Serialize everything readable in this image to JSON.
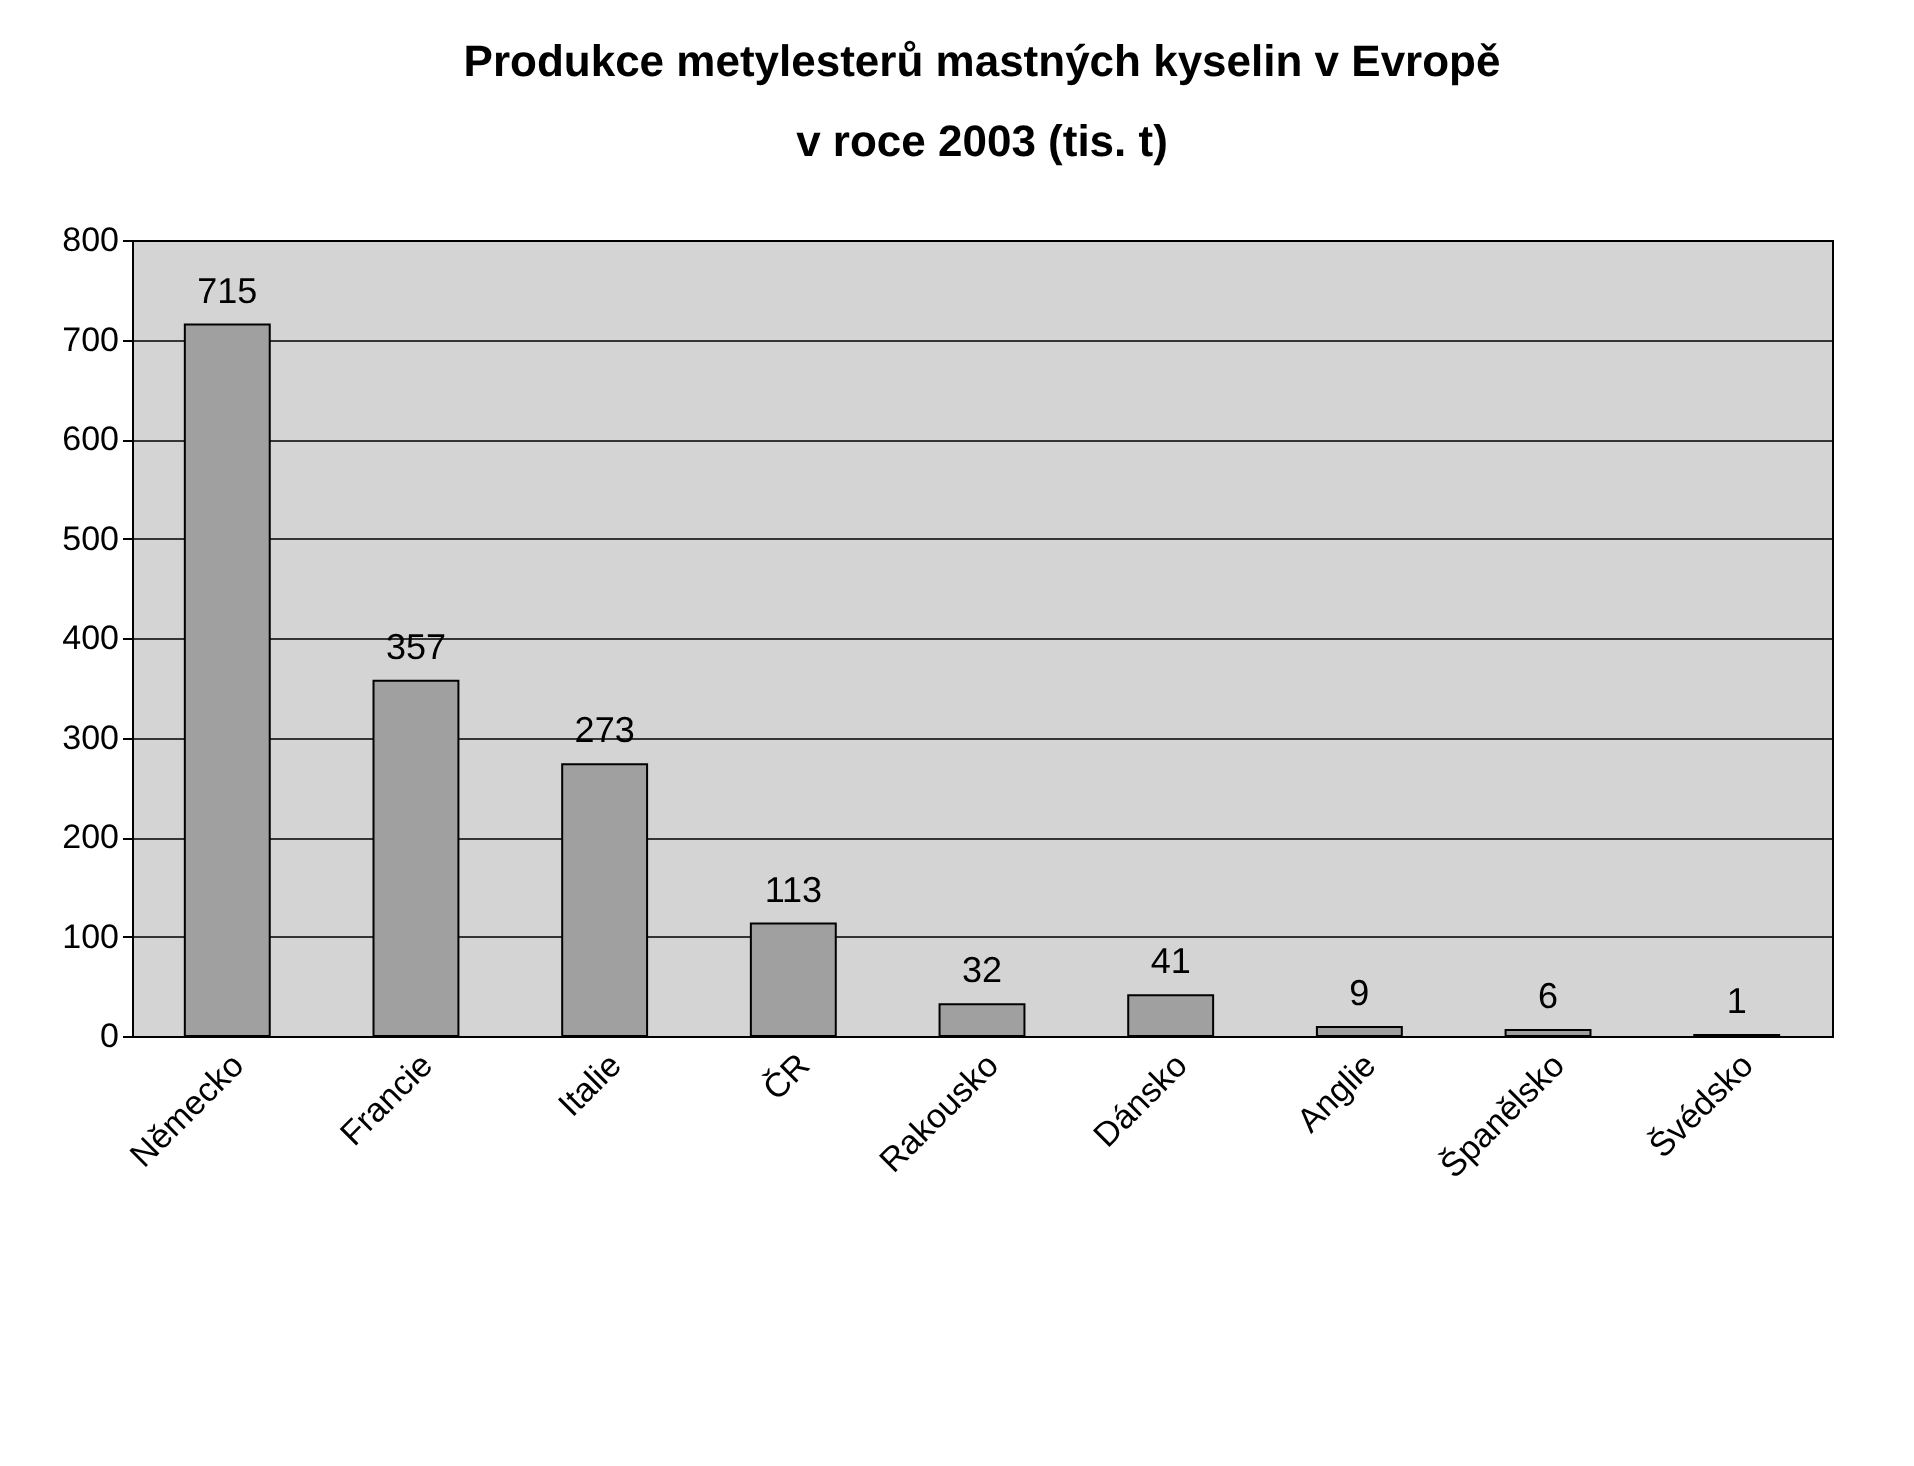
{
  "chart_data": {
    "type": "bar",
    "title": [
      "Produkce metylesterů mastných kyselin v Evropě",
      "v roce 2003 (tis. t)"
    ],
    "categories": [
      "Německo",
      "Francie",
      "Italie",
      "ČR",
      "Rakousko",
      "Dánsko",
      "Anglie",
      "Španělsko",
      "Švédsko"
    ],
    "values": [
      715,
      357,
      273,
      113,
      32,
      41,
      9,
      6,
      1
    ],
    "color": "#a0a0a0",
    "ylim": [
      0,
      800
    ],
    "yticks": [
      0,
      100,
      200,
      300,
      400,
      500,
      600,
      700,
      800
    ],
    "grid": "y",
    "data_labels": true
  }
}
